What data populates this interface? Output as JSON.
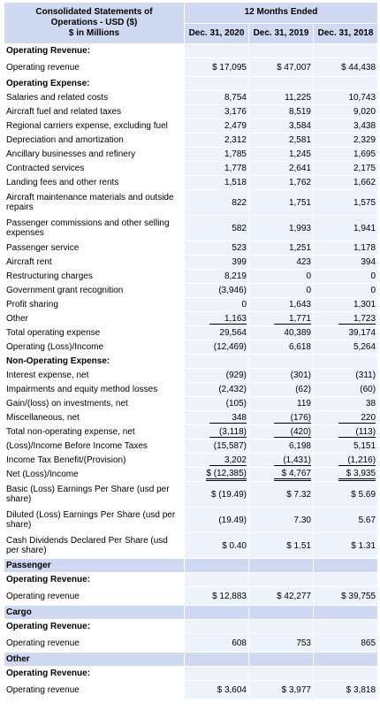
{
  "header": {
    "title_line1": "Consolidated Statements of",
    "title_line2": "Operations - USD ($)",
    "title_line3": "$ in Millions",
    "period": "12 Months Ended",
    "dates": [
      "Dec. 31, 2020",
      "Dec. 31, 2019",
      "Dec. 31, 2018"
    ]
  },
  "rows": [
    {
      "type": "section",
      "label": "Operating Revenue:"
    },
    {
      "type": "data",
      "label": "Operating revenue",
      "values": [
        "$ 17,095",
        "$ 47,007",
        "$ 44,438"
      ],
      "height": "mid"
    },
    {
      "type": "section",
      "label": "Operating Expense:"
    },
    {
      "type": "data",
      "label": "Salaries and related costs",
      "values": [
        "8,754",
        "11,225",
        "10,743"
      ]
    },
    {
      "type": "data",
      "label": "Aircraft fuel and related taxes",
      "values": [
        "3,176",
        "8,519",
        "9,020"
      ]
    },
    {
      "type": "data",
      "label": "Regional carriers expense, excluding fuel",
      "values": [
        "2,479",
        "3,584",
        "3,438"
      ]
    },
    {
      "type": "data",
      "label": "Depreciation and amortization",
      "values": [
        "2,312",
        "2,581",
        "2,329"
      ]
    },
    {
      "type": "data",
      "label": "Ancillary businesses and refinery",
      "values": [
        "1,785",
        "1,245",
        "1,695"
      ]
    },
    {
      "type": "data",
      "label": "Contracted services",
      "values": [
        "1,778",
        "2,641",
        "2,175"
      ]
    },
    {
      "type": "data",
      "label": "Landing fees and other rents",
      "values": [
        "1,518",
        "1,762",
        "1,662"
      ]
    },
    {
      "type": "data",
      "label": "Aircraft maintenance materials and outside repairs",
      "values": [
        "822",
        "1,751",
        "1,575"
      ],
      "height": "tall"
    },
    {
      "type": "data",
      "label": "Passenger commissions and other selling expenses",
      "values": [
        "582",
        "1,993",
        "1,941"
      ],
      "height": "tall"
    },
    {
      "type": "data",
      "label": "Passenger service",
      "values": [
        "523",
        "1,251",
        "1,178"
      ]
    },
    {
      "type": "data",
      "label": "Aircraft rent",
      "values": [
        "399",
        "423",
        "394"
      ]
    },
    {
      "type": "data",
      "label": "Restructuring charges",
      "values": [
        "8,219",
        "0",
        "0"
      ]
    },
    {
      "type": "data",
      "label": "Government grant recognition",
      "values": [
        "(3,946)",
        "0",
        "0"
      ]
    },
    {
      "type": "data",
      "label": "Profit sharing",
      "values": [
        "0",
        "1,643",
        "1,301"
      ]
    },
    {
      "type": "data",
      "label": "Other",
      "values": [
        "1,163",
        "1,771",
        "1,723"
      ],
      "underline": "single"
    },
    {
      "type": "data",
      "label": "Total operating expense",
      "values": [
        "29,564",
        "40,389",
        "39,174"
      ]
    },
    {
      "type": "data",
      "label": "Operating (Loss)/Income",
      "values": [
        "(12,469)",
        "6,618",
        "5,264"
      ],
      "underline_top": true
    },
    {
      "type": "section",
      "label": "Non-Operating Expense:"
    },
    {
      "type": "data",
      "label": "Interest expense, net",
      "values": [
        "(929)",
        "(301)",
        "(311)"
      ]
    },
    {
      "type": "data",
      "label": "Impairments and equity method losses",
      "values": [
        "(2,432)",
        "(62)",
        "(60)"
      ]
    },
    {
      "type": "data",
      "label": "Gain/(loss) on investments, net",
      "values": [
        "(105)",
        "119",
        "38"
      ]
    },
    {
      "type": "data",
      "label": "Miscellaneous, net",
      "values": [
        "348",
        "(176)",
        "220"
      ],
      "underline": "single"
    },
    {
      "type": "data",
      "label": "Total non-operating expense, net",
      "values": [
        "(3,118)",
        "(420)",
        "(113)"
      ],
      "underline": "single"
    },
    {
      "type": "data",
      "label": "(Loss)/Income Before Income Taxes",
      "values": [
        "(15,587)",
        "6,198",
        "5,151"
      ]
    },
    {
      "type": "data",
      "label": "Income Tax Benefit/(Provision)",
      "values": [
        "3,202",
        "(1,431)",
        "(1,216)"
      ],
      "underline": "single"
    },
    {
      "type": "data",
      "label": "Net (Loss)/Income",
      "values": [
        "$ (12,385)",
        "$ 4,767",
        "$ 3,935"
      ],
      "underline": "double"
    },
    {
      "type": "data",
      "label": "Basic (Loss) Earnings Per Share (usd per share)",
      "values": [
        "$ (19.49)",
        "$ 7.32",
        "$ 5.69"
      ],
      "height": "tall"
    },
    {
      "type": "data",
      "label": "Diluted (Loss) Earnings Per Share (usd per share)",
      "values": [
        "(19.49)",
        "7.30",
        "5.67"
      ],
      "height": "tall"
    },
    {
      "type": "data",
      "label": "Cash Dividends Declared Per Share (usd per share)",
      "values": [
        "$ 0.40",
        "$ 1.51",
        "$ 1.31"
      ],
      "height": "tall"
    },
    {
      "type": "category",
      "label": "Passenger"
    },
    {
      "type": "section",
      "label": "Operating Revenue:"
    },
    {
      "type": "data",
      "label": "Operating revenue",
      "values": [
        "$ 12,883",
        "$ 42,277",
        "$ 39,755"
      ],
      "height": "mid"
    },
    {
      "type": "category",
      "label": "Cargo"
    },
    {
      "type": "section",
      "label": "Operating Revenue:"
    },
    {
      "type": "data",
      "label": "Operating revenue",
      "values": [
        "608",
        "753",
        "865"
      ],
      "height": "mid"
    },
    {
      "type": "category",
      "label": "Other"
    },
    {
      "type": "section",
      "label": "Operating Revenue:"
    },
    {
      "type": "data",
      "label": "Operating revenue",
      "values": [
        "$ 3,604",
        "$ 3,977",
        "$ 3,818"
      ],
      "height": "mid"
    }
  ]
}
